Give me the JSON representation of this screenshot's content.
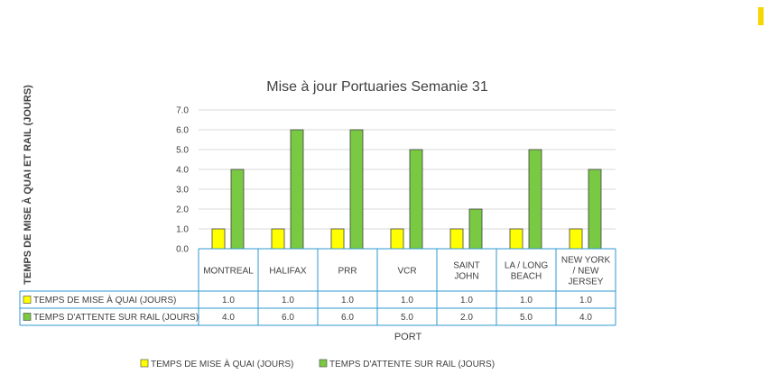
{
  "accent_color": "#f5d800",
  "chart_data": {
    "type": "bar",
    "title": "Mise à jour Portuaries Semanie 31",
    "xlabel": "PORT",
    "ylabel": "TEMPS DE MISE À QUAI ET RAIL (JOURS)",
    "categories": [
      "MONTREAL",
      "HALIFAX",
      "PRR",
      "VCR",
      "SAINT JOHN",
      "LA / LONG BEACH",
      "NEW YORK / NEW JERSEY"
    ],
    "ylim": [
      0,
      7
    ],
    "yticks": [
      "0.0",
      "1.0",
      "2.0",
      "3.0",
      "4.0",
      "5.0",
      "6.0",
      "7.0"
    ],
    "grid": true,
    "legend_position": "bottom",
    "data_table": true,
    "series": [
      {
        "name": "TEMPS DE MISE À QUAI (JOURS)",
        "color": "#ffff00",
        "values": [
          1.0,
          1.0,
          1.0,
          1.0,
          1.0,
          1.0,
          1.0
        ],
        "labels": [
          "1.0",
          "1.0",
          "1.0",
          "1.0",
          "1.0",
          "1.0",
          "1.0"
        ]
      },
      {
        "name": "TEMPS  D'ATTENTE SUR RAIL (JOURS)",
        "color": "#7ac943",
        "values": [
          4.0,
          6.0,
          6.0,
          5.0,
          2.0,
          5.0,
          4.0
        ],
        "labels": [
          "4.0",
          "6.0",
          "6.0",
          "5.0",
          "2.0",
          "5.0",
          "4.0"
        ]
      }
    ]
  }
}
